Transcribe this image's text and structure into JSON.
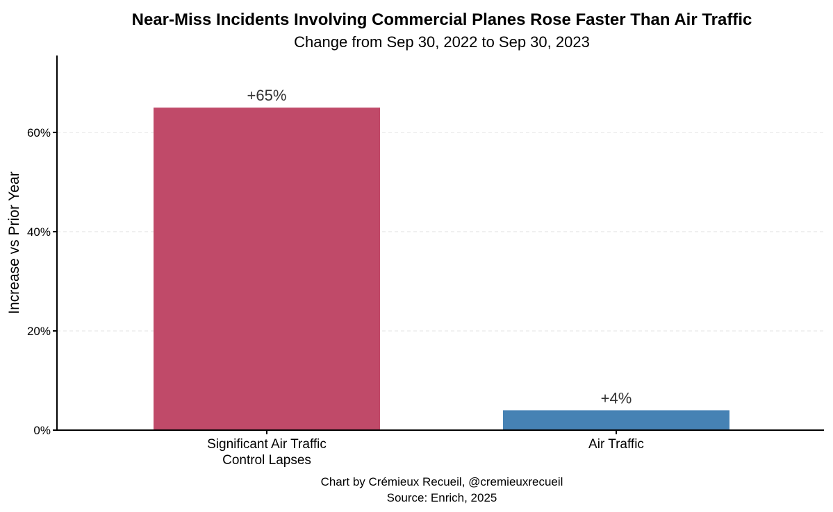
{
  "chart_data": {
    "type": "bar",
    "title": "Near-Miss Incidents Involving Commercial Planes Rose Faster Than Air Traffic",
    "subtitle": "Change from Sep 30, 2022 to Sep 30, 2023",
    "xlabel": "",
    "ylabel": "Increase vs Prior Year",
    "ylim": [
      0,
      75.5
    ],
    "yticks": [
      0,
      20,
      40,
      60
    ],
    "ytick_labels": [
      "0%",
      "20%",
      "40%",
      "60%"
    ],
    "grid": "horizontal dashed",
    "categories": [
      [
        "Significant Air Traffic",
        "Control Lapses"
      ],
      [
        "Air Traffic"
      ]
    ],
    "values": [
      65,
      4
    ],
    "data_labels": [
      "+65%",
      "+4%"
    ],
    "colors": [
      "#c04a69",
      "#4682b4"
    ],
    "caption": [
      "Chart by Crémieux Recueil, @cremieuxrecueil",
      "Source: Enrich, 2025"
    ]
  }
}
